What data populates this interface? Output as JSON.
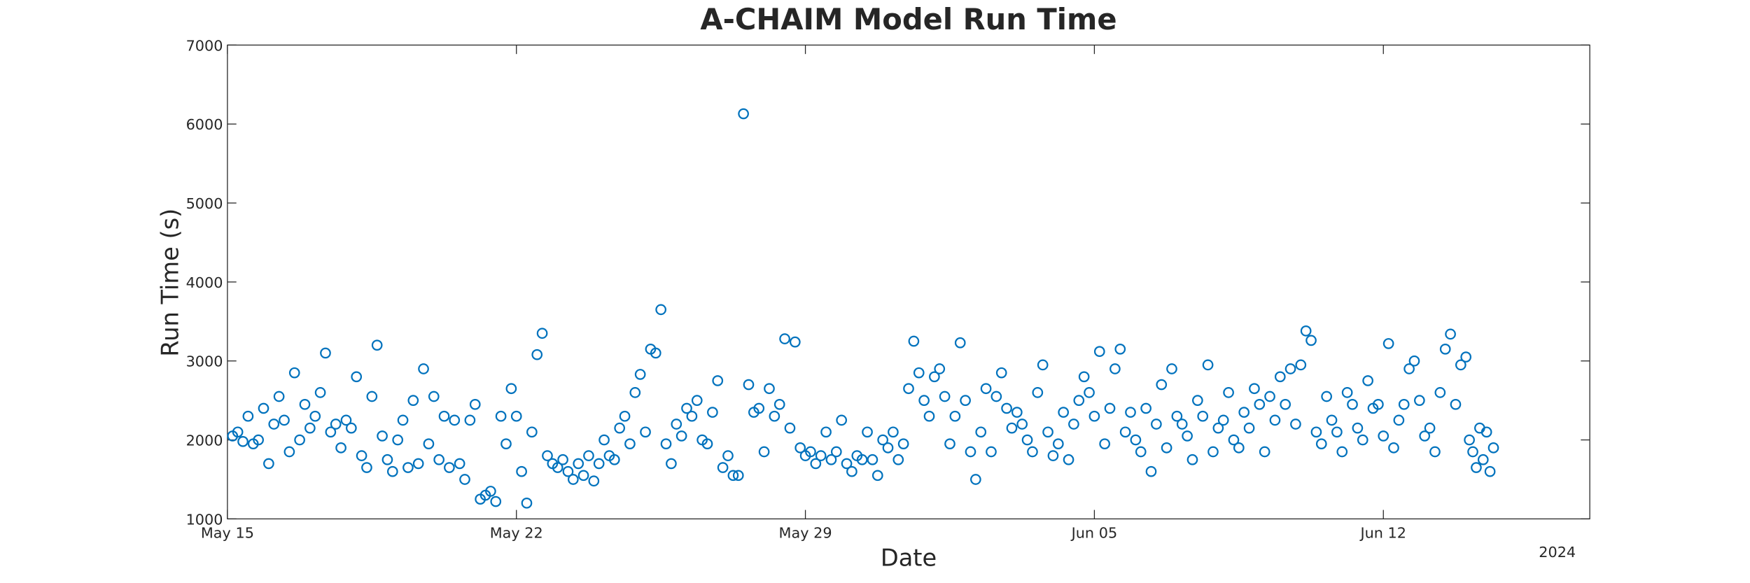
{
  "chart_data": {
    "type": "scatter",
    "title": "A-CHAIM Model Run Time",
    "xlabel": "Date",
    "ylabel": "Run Time (s)",
    "color": "#0072bd",
    "grid": false,
    "xlim": [
      {
        "value": "2024-05-15T00:00",
        "label": "May 15"
      },
      "2024-06-17T00:00"
    ],
    "xticks": [
      {
        "value": "2024-05-15T00:00",
        "label": "May 15"
      },
      {
        "value": "2024-05-22T00:00",
        "label": "May 22"
      },
      {
        "value": "2024-05-29T00:00",
        "label": "May 29"
      },
      {
        "value": "2024-06-05T00:00",
        "label": "Jun 05"
      },
      {
        "value": "2024-06-12T00:00",
        "label": "Jun 12"
      }
    ],
    "x_year_label": "2024",
    "ylim": [
      1000,
      7000
    ],
    "yticks": [
      1000,
      2000,
      3000,
      4000,
      5000,
      6000,
      7000
    ],
    "x": [
      "2024-05-15T03:00",
      "2024-05-15T06:00",
      "2024-05-15T09:00",
      "2024-05-15T12:00",
      "2024-05-15T15:00",
      "2024-05-15T18:00",
      "2024-05-15T21:00",
      "2024-05-16T00:00",
      "2024-05-16T03:00",
      "2024-05-16T06:00",
      "2024-05-16T09:00",
      "2024-05-16T12:00",
      "2024-05-16T15:00",
      "2024-05-16T18:00",
      "2024-05-16T21:00",
      "2024-05-17T00:00",
      "2024-05-17T03:00",
      "2024-05-17T06:00",
      "2024-05-17T09:00",
      "2024-05-17T12:00",
      "2024-05-17T15:00",
      "2024-05-17T18:00",
      "2024-05-17T21:00",
      "2024-05-18T00:00",
      "2024-05-18T03:00",
      "2024-05-18T06:00",
      "2024-05-18T09:00",
      "2024-05-18T12:00",
      "2024-05-18T15:00",
      "2024-05-18T18:00",
      "2024-05-18T21:00",
      "2024-05-19T00:00",
      "2024-05-19T03:00",
      "2024-05-19T06:00",
      "2024-05-19T09:00",
      "2024-05-19T12:00",
      "2024-05-19T15:00",
      "2024-05-19T18:00",
      "2024-05-19T21:00",
      "2024-05-20T00:00",
      "2024-05-20T03:00",
      "2024-05-20T06:00",
      "2024-05-20T09:00",
      "2024-05-20T12:00",
      "2024-05-20T15:00",
      "2024-05-20T18:00",
      "2024-05-20T21:00",
      "2024-05-21T00:00",
      "2024-05-21T03:00",
      "2024-05-21T06:00",
      "2024-05-21T09:00",
      "2024-05-21T12:00",
      "2024-05-21T15:00",
      "2024-05-21T18:00",
      "2024-05-21T21:00",
      "2024-05-22T00:00",
      "2024-05-22T03:00",
      "2024-05-22T06:00",
      "2024-05-22T09:00",
      "2024-05-22T12:00",
      "2024-05-22T15:00",
      "2024-05-22T18:00",
      "2024-05-22T21:00",
      "2024-05-23T00:00",
      "2024-05-23T03:00",
      "2024-05-23T06:00",
      "2024-05-23T09:00",
      "2024-05-23T12:00",
      "2024-05-23T15:00",
      "2024-05-23T18:00",
      "2024-05-23T21:00",
      "2024-05-24T00:00",
      "2024-05-24T03:00",
      "2024-05-24T06:00",
      "2024-05-24T09:00",
      "2024-05-24T12:00",
      "2024-05-24T15:00",
      "2024-05-24T18:00",
      "2024-05-24T21:00",
      "2024-05-25T00:00",
      "2024-05-25T03:00",
      "2024-05-25T06:00",
      "2024-05-25T09:00",
      "2024-05-25T12:00",
      "2024-05-25T15:00",
      "2024-05-25T18:00",
      "2024-05-25T21:00",
      "2024-05-26T00:00",
      "2024-05-26T03:00",
      "2024-05-26T06:00",
      "2024-05-26T09:00",
      "2024-05-26T12:00",
      "2024-05-26T15:00",
      "2024-05-26T18:00",
      "2024-05-26T21:00",
      "2024-05-27T00:00",
      "2024-05-27T03:00",
      "2024-05-27T06:00",
      "2024-05-27T09:00",
      "2024-05-27T12:00",
      "2024-05-27T15:00",
      "2024-05-27T18:00",
      "2024-05-27T21:00",
      "2024-05-28T00:00",
      "2024-05-28T03:00",
      "2024-05-28T06:00",
      "2024-05-28T09:00",
      "2024-05-28T12:00",
      "2024-05-28T15:00",
      "2024-05-28T18:00",
      "2024-05-28T21:00",
      "2024-05-29T00:00",
      "2024-05-29T03:00",
      "2024-05-29T06:00",
      "2024-05-29T09:00",
      "2024-05-29T12:00",
      "2024-05-29T15:00",
      "2024-05-29T18:00",
      "2024-05-29T21:00",
      "2024-05-30T00:00",
      "2024-05-30T03:00",
      "2024-05-30T06:00",
      "2024-05-30T09:00",
      "2024-05-30T12:00",
      "2024-05-30T15:00",
      "2024-05-30T18:00",
      "2024-05-30T21:00",
      "2024-05-31T00:00",
      "2024-05-31T03:00",
      "2024-05-31T06:00",
      "2024-05-31T09:00",
      "2024-05-31T12:00",
      "2024-05-31T15:00",
      "2024-05-31T18:00",
      "2024-05-31T21:00",
      "2024-06-01T00:00",
      "2024-06-01T03:00",
      "2024-06-01T06:00",
      "2024-06-01T09:00",
      "2024-06-01T12:00",
      "2024-06-01T15:00",
      "2024-06-01T18:00",
      "2024-06-01T21:00",
      "2024-06-02T00:00",
      "2024-06-02T03:00",
      "2024-06-02T06:00",
      "2024-06-02T09:00",
      "2024-06-02T12:00",
      "2024-06-02T15:00",
      "2024-06-02T18:00",
      "2024-06-02T21:00",
      "2024-06-03T00:00",
      "2024-06-03T03:00",
      "2024-06-03T06:00",
      "2024-06-03T09:00",
      "2024-06-03T12:00",
      "2024-06-03T15:00",
      "2024-06-03T18:00",
      "2024-06-03T21:00",
      "2024-06-04T00:00",
      "2024-06-04T03:00",
      "2024-06-04T06:00",
      "2024-06-04T09:00",
      "2024-06-04T12:00",
      "2024-06-04T15:00",
      "2024-06-04T18:00",
      "2024-06-04T21:00",
      "2024-06-05T00:00",
      "2024-06-05T03:00",
      "2024-06-05T06:00",
      "2024-06-05T09:00",
      "2024-06-05T12:00",
      "2024-06-05T15:00",
      "2024-06-05T18:00",
      "2024-06-05T21:00",
      "2024-06-06T00:00",
      "2024-06-06T03:00",
      "2024-06-06T06:00",
      "2024-06-06T09:00",
      "2024-06-06T12:00",
      "2024-06-06T15:00",
      "2024-06-06T18:00",
      "2024-06-06T21:00",
      "2024-06-07T00:00",
      "2024-06-07T03:00",
      "2024-06-07T06:00",
      "2024-06-07T09:00",
      "2024-06-07T12:00",
      "2024-06-07T15:00",
      "2024-06-07T18:00",
      "2024-06-07T21:00",
      "2024-06-08T00:00",
      "2024-06-08T03:00",
      "2024-06-08T06:00",
      "2024-06-08T09:00",
      "2024-06-08T12:00",
      "2024-06-08T15:00",
      "2024-06-08T18:00",
      "2024-06-08T21:00",
      "2024-06-09T00:00",
      "2024-06-09T03:00",
      "2024-06-09T06:00",
      "2024-06-09T09:00",
      "2024-06-09T12:00",
      "2024-06-09T15:00",
      "2024-06-09T18:00",
      "2024-06-09T21:00",
      "2024-06-10T00:00",
      "2024-06-10T03:00",
      "2024-06-10T06:00",
      "2024-06-10T09:00",
      "2024-06-10T12:00",
      "2024-06-10T15:00",
      "2024-06-10T18:00",
      "2024-06-10T21:00",
      "2024-06-11T00:00",
      "2024-06-11T03:00",
      "2024-06-11T06:00",
      "2024-06-11T09:00",
      "2024-06-11T12:00",
      "2024-06-11T15:00",
      "2024-06-11T18:00",
      "2024-06-11T21:00",
      "2024-06-12T00:00",
      "2024-06-12T03:00",
      "2024-06-12T06:00",
      "2024-06-12T09:00",
      "2024-06-12T12:00",
      "2024-06-12T15:00",
      "2024-06-12T18:00",
      "2024-06-12T21:00",
      "2024-06-13T00:00",
      "2024-06-13T03:00",
      "2024-06-13T06:00",
      "2024-06-13T09:00",
      "2024-06-13T12:00",
      "2024-06-13T15:00",
      "2024-06-13T18:00",
      "2024-06-13T21:00",
      "2024-06-14T00:00",
      "2024-06-14T02:00",
      "2024-06-14T04:00",
      "2024-06-14T06:00",
      "2024-06-14T08:00",
      "2024-06-14T10:00",
      "2024-06-14T12:00",
      "2024-06-14T14:00",
      "2024-06-14T16:00"
    ],
    "values": [
      2050,
      2100,
      1980,
      2300,
      1950,
      2000,
      2400,
      1700,
      2200,
      2550,
      2250,
      1850,
      2850,
      2000,
      2450,
      2150,
      2300,
      2600,
      3100,
      2100,
      2200,
      1900,
      2250,
      2150,
      2800,
      1800,
      1650,
      2550,
      3200,
      2050,
      1750,
      1600,
      2000,
      2250,
      1650,
      2500,
      1700,
      2900,
      1950,
      2550,
      1750,
      2300,
      1650,
      2250,
      1700,
      1500,
      2250,
      2450,
      1250,
      1300,
      1350,
      1220,
      2300,
      1950,
      2650,
      2300,
      1600,
      1200,
      2100,
      3080,
      3350,
      1800,
      1700,
      1650,
      1750,
      1600,
      1500,
      1700,
      1550,
      1800,
      1480,
      1700,
      2000,
      1800,
      1750,
      2150,
      2300,
      1950,
      2600,
      2830,
      2100,
      3150,
      3100,
      3650,
      1950,
      1700,
      2200,
      2050,
      2400,
      2300,
      2500,
      2000,
      1950,
      2350,
      2750,
      1650,
      1800,
      1550,
      1550,
      6130,
      2700,
      2350,
      2400,
      1850,
      2650,
      2300,
      2450,
      3280,
      2150,
      3240,
      1900,
      1800,
      1850,
      1700,
      1800,
      2100,
      1750,
      1850,
      2250,
      1700,
      1600,
      1800,
      1750,
      2100,
      1750,
      1550,
      2000,
      1900,
      2100,
      1750,
      1950,
      2650,
      3250,
      2850,
      2500,
      2300,
      2800,
      2900,
      2550,
      1950,
      2300,
      3230,
      2500,
      1850,
      1500,
      2100,
      2650,
      1850,
      2550,
      2850,
      2400,
      2150,
      2350,
      2200,
      2000,
      1850,
      2600,
      2950,
      2100,
      1800,
      1950,
      2350,
      1750,
      2200,
      2500,
      2800,
      2600,
      2300,
      3120,
      1950,
      2400,
      2900,
      3150,
      2100,
      2350,
      2000,
      1850,
      2400,
      1600,
      2200,
      2700,
      1900,
      2900,
      2300,
      2200,
      2050,
      1750,
      2500,
      2300,
      2950,
      1850,
      2150,
      2250,
      2600,
      2000,
      1900,
      2350,
      2150,
      2650,
      2450,
      1850,
      2550,
      2250,
      2800,
      2450,
      2900,
      2200,
      2950,
      3380,
      3260,
      2100,
      1950,
      2550,
      2250,
      2100,
      1850,
      2600,
      2450,
      2150,
      2000,
      2750,
      2400,
      2450,
      2050,
      3220,
      1900,
      2250,
      2450,
      2900,
      3000,
      2500,
      2050,
      2150,
      1850,
      2600,
      3150,
      3340,
      2450,
      2950,
      3050,
      2000,
      1850,
      1650,
      2150,
      1750,
      2100,
      1600,
      1900
    ]
  }
}
